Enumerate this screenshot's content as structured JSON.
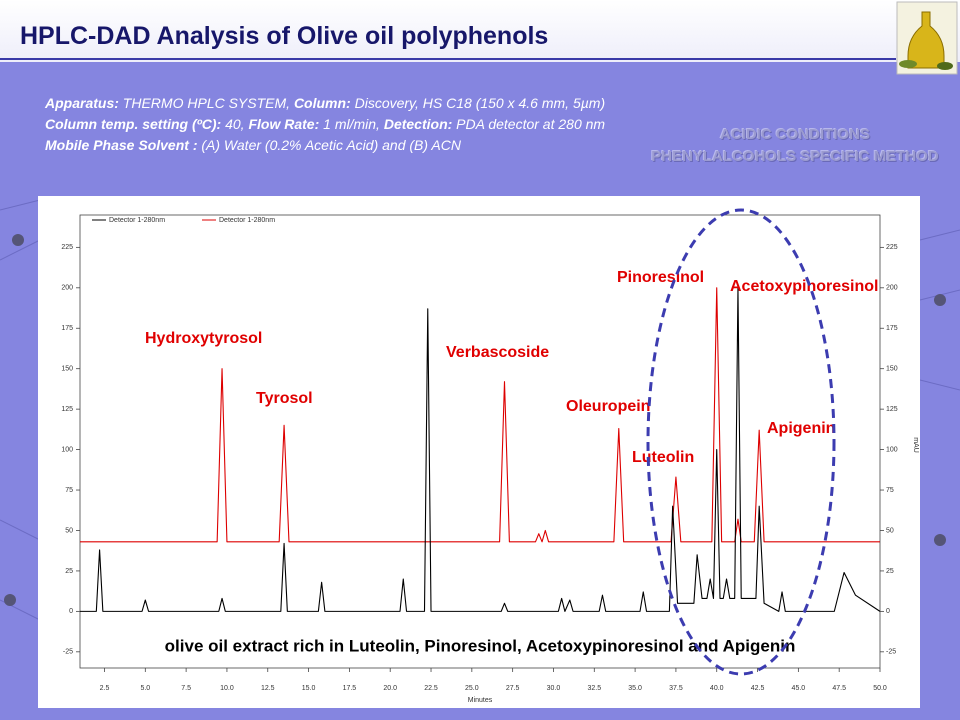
{
  "title": "HPLC-DAD Analysis of Olive oil polyphenols",
  "method": [
    [
      {
        "label": "Apparatus:",
        "value": "THERMO HPLC SYSTEM,"
      },
      {
        "label": "Column:",
        "value": "Discovery, HS C18 (150 x 4.6 mm, 5µm)"
      }
    ],
    [
      {
        "label": "Column temp. setting (ºC):",
        "value": "40,"
      },
      {
        "label": "Flow Rate:",
        "value": "1 ml/min,"
      },
      {
        "label": "Detection:",
        "value": "PDA detector at 280 nm"
      }
    ],
    [
      {
        "label": "Mobile Phase Solvent :",
        "value": "(A) Water (0.2% Acetic Acid) and (B) ACN"
      }
    ]
  ],
  "conditions": [
    "ACIDIC CONDITIONS",
    "PHENYLALCOHOLS SPECIFIC METHOD"
  ],
  "chart_data": {
    "type": "line",
    "xlabel": "Minutes",
    "ylabel": "mAU",
    "xlim": [
      1,
      50
    ],
    "ylim": [
      -35,
      245
    ],
    "xticks": [
      2.5,
      {
        "value": 5,
        "label": "5.0"
      },
      7.5,
      {
        "value": 10,
        "label": "10.0"
      },
      12.5,
      {
        "value": 15,
        "label": "15.0"
      },
      17.5,
      {
        "value": 20,
        "label": "20.0"
      },
      22.5,
      {
        "value": 25,
        "label": "25.0"
      },
      27.5,
      {
        "value": 30,
        "label": "30.0"
      },
      32.5,
      {
        "value": 35,
        "label": "35.0"
      },
      37.5,
      {
        "value": 40,
        "label": "40.0"
      },
      42.5,
      {
        "value": 45,
        "label": "45.0"
      },
      47.5,
      {
        "value": 50,
        "label": "50.0"
      }
    ],
    "yticks": [
      -25,
      0,
      25,
      50,
      75,
      100,
      125,
      150,
      175,
      200,
      225
    ],
    "y2lim": [
      -35,
      245
    ],
    "y2ticks": [
      -25,
      0,
      25,
      50,
      75,
      100,
      125,
      150,
      175,
      200,
      225
    ],
    "series": [
      {
        "name": "Detector 1-280nm",
        "color": "#000000",
        "x": [
          1,
          2.0,
          2.2,
          2.4,
          4.8,
          5.0,
          5.2,
          9.5,
          9.7,
          9.9,
          13.3,
          13.5,
          13.7,
          15.6,
          15.8,
          16.0,
          20.6,
          20.8,
          21.0,
          22.1,
          22.3,
          22.5,
          26.8,
          27.0,
          27.2,
          30.3,
          30.5,
          30.7,
          31.0,
          31.2,
          32.8,
          33.0,
          33.2,
          35.3,
          35.5,
          35.7,
          37.1,
          37.3,
          37.6,
          38.6,
          38.8,
          39.1,
          39.4,
          39.6,
          39.8,
          40.0,
          40.2,
          40.4,
          40.6,
          40.8,
          41.1,
          41.3,
          41.5,
          42.4,
          42.6,
          42.9,
          43.8,
          44.0,
          44.2,
          47.2,
          47.8,
          48.5,
          50
        ],
        "values": [
          0,
          0,
          38,
          0,
          0,
          7,
          0,
          0,
          8,
          0,
          0,
          42,
          0,
          0,
          18,
          0,
          0,
          20,
          0,
          0,
          187,
          0,
          0,
          5,
          0,
          0,
          8,
          0,
          7,
          0,
          0,
          10,
          0,
          0,
          12,
          0,
          0,
          65,
          5,
          5,
          35,
          8,
          8,
          20,
          8,
          100,
          8,
          8,
          20,
          8,
          8,
          200,
          8,
          8,
          65,
          5,
          0,
          12,
          0,
          0,
          24,
          10,
          0
        ]
      },
      {
        "name": "Detector 1-280nm",
        "color": "#dd0000",
        "x": [
          1,
          9.4,
          9.7,
          10.0,
          13.2,
          13.5,
          13.8,
          26.7,
          27.0,
          27.3,
          28.9,
          29.1,
          29.3,
          29.5,
          29.7,
          33.7,
          34.0,
          34.3,
          37.2,
          37.5,
          37.8,
          39.7,
          40.0,
          40.3,
          41.1,
          41.3,
          41.5,
          42.3,
          42.6,
          42.9,
          50
        ],
        "values": [
          43,
          43,
          150,
          43,
          43,
          115,
          43,
          43,
          142,
          43,
          43,
          48,
          43,
          50,
          43,
          43,
          113,
          43,
          43,
          83,
          43,
          43,
          200,
          43,
          43,
          57,
          43,
          43,
          112,
          43,
          43
        ]
      }
    ],
    "annotations": [
      "Hydroxytyrosol",
      "Tyrosol",
      "Verbascoside",
      "Oleuropein",
      "Luteolin",
      "Pinoresinol",
      "Acetoxypinoresinol",
      "Apigenin"
    ],
    "caption": "olive oil extract rich in Luteolin, Pinoresinol, Acetoxypinoresinol and Apigenin"
  }
}
